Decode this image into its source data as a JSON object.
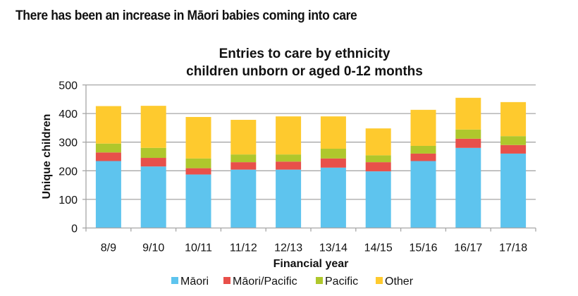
{
  "headline": "There has been an increase in Māori babies coming into care",
  "chart_data": {
    "type": "bar",
    "stacked": true,
    "title": [
      "Entries to care by ethnicity",
      "children unborn or aged 0-12 months"
    ],
    "xlabel": "Financial year",
    "ylabel": "Unique children",
    "ylim": [
      0,
      500
    ],
    "yticks": [
      0,
      100,
      200,
      300,
      400,
      500
    ],
    "grid": true,
    "legend_position": "bottom",
    "categories": [
      "8/9",
      "9/10",
      "10/11",
      "11/12",
      "12/13",
      "13/14",
      "14/15",
      "15/16",
      "16/17",
      "17/18"
    ],
    "series": [
      {
        "name": "Māori",
        "color": "#5EC4EE",
        "values": [
          234,
          215,
          187,
          204,
          204,
          211,
          198,
          234,
          280,
          260
        ]
      },
      {
        "name": "Māori/Pacific",
        "color": "#E8504A",
        "values": [
          30,
          30,
          22,
          26,
          28,
          32,
          32,
          26,
          32,
          30
        ]
      },
      {
        "name": "Pacific",
        "color": "#AFC72C",
        "values": [
          31,
          35,
          34,
          27,
          25,
          34,
          24,
          27,
          32,
          31
        ]
      },
      {
        "name": "Other",
        "color": "#FECA2E",
        "values": [
          131,
          147,
          145,
          121,
          133,
          113,
          94,
          126,
          111,
          119
        ]
      }
    ]
  }
}
